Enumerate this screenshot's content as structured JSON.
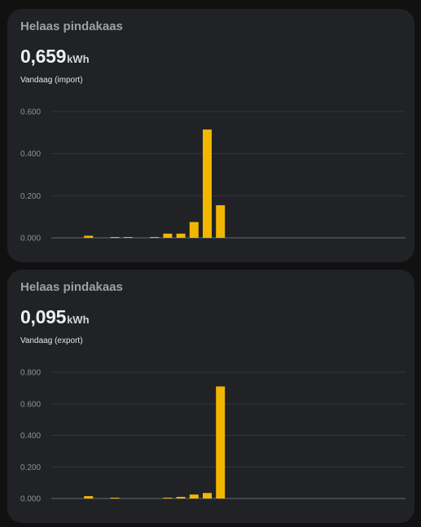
{
  "cards": [
    {
      "id": "import",
      "title": "Helaas pindakaas",
      "value": "0,659",
      "unit": "kWh",
      "label": "Vandaag (import)",
      "chart_data": {
        "type": "bar",
        "ylim": [
          0,
          0.6
        ],
        "y_ticks": [
          "0.000",
          "0.200",
          "0.400",
          "0.600"
        ],
        "y_tick_values": [
          0,
          0.2,
          0.4,
          0.6
        ],
        "grid": true,
        "bar_color": "#f2b600",
        "categories": [
          "0",
          "1",
          "2",
          "3",
          "4",
          "5",
          "6",
          "7",
          "8",
          "9",
          "10",
          "11",
          "12",
          "13",
          "14",
          "15",
          "16",
          "17",
          "18",
          "19",
          "20",
          "21",
          "22",
          "23",
          "24",
          "25"
        ],
        "values": [
          0,
          0.01,
          0,
          0.002,
          0.002,
          0,
          0.002,
          0.02,
          0.02,
          0.075,
          0.515,
          0.155,
          0,
          0,
          0,
          0,
          0,
          0,
          0,
          0,
          0,
          0,
          0,
          0,
          0,
          0
        ]
      }
    },
    {
      "id": "export",
      "title": "Helaas pindakaas",
      "value": "0,095",
      "unit": "kWh",
      "label": "Vandaag (export)",
      "chart_data": {
        "type": "bar",
        "ylim": [
          0,
          0.8
        ],
        "y_ticks": [
          "0.000",
          "0.200",
          "0.400",
          "0.600",
          "0.800"
        ],
        "y_tick_values": [
          0,
          0.2,
          0.4,
          0.6,
          0.8
        ],
        "grid": true,
        "bar_color": "#f2b600",
        "categories": [
          "0",
          "1",
          "2",
          "3",
          "4",
          "5",
          "6",
          "7",
          "8",
          "9",
          "10",
          "11",
          "12",
          "13",
          "14",
          "15",
          "16",
          "17",
          "18",
          "19",
          "20",
          "21",
          "22",
          "23",
          "24",
          "25"
        ],
        "values": [
          0,
          0.015,
          0,
          0.003,
          0,
          0,
          0,
          0.003,
          0.01,
          0.025,
          0.035,
          0.71,
          0,
          0,
          0,
          0,
          0,
          0,
          0,
          0,
          0,
          0,
          0,
          0,
          0,
          0
        ]
      }
    }
  ]
}
